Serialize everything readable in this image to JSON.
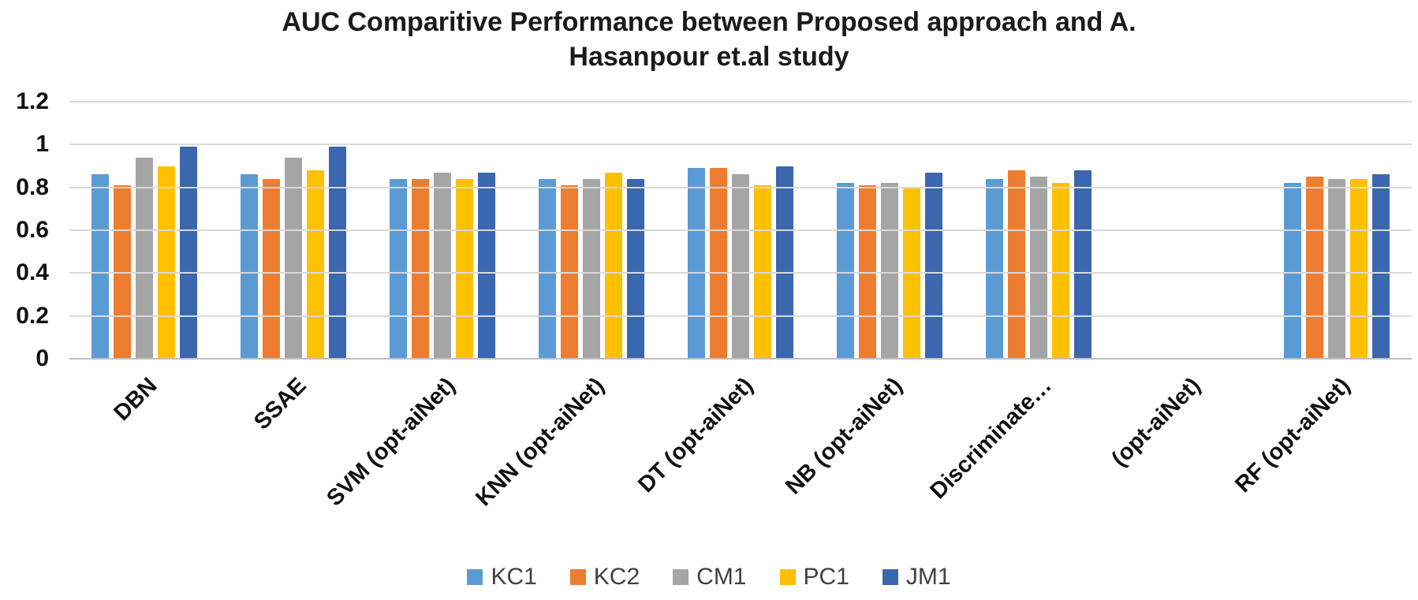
{
  "title": {
    "line1": "AUC Comparitive Performance between Proposed approach and A.",
    "line2": "Hasanpour et.al study"
  },
  "chart_data": {
    "type": "bar",
    "title": "AUC Comparitive Performance between Proposed approach and A. Hasanpour et.al study",
    "xlabel": "",
    "ylabel": "",
    "ylim": [
      0,
      1.2
    ],
    "y_ticks": [
      0,
      0.2,
      0.4,
      0.6,
      0.8,
      1,
      1.2
    ],
    "y_tick_labels": [
      "0",
      "0.2",
      "0.4",
      "0.6",
      "0.8",
      "1",
      "1.2"
    ],
    "grid": true,
    "legend_position": "bottom",
    "categories": [
      "DBN",
      "SSAE",
      "SVM (opt-aiNet)",
      "KNN (opt-aiNet)",
      "DT (opt-aiNet)",
      "NB (opt-aiNet)",
      "Discriminate…",
      "(opt-aiNet)",
      "RF (opt-aiNet)"
    ],
    "series": [
      {
        "name": "KC1",
        "color": "#5B9BD5",
        "values": [
          0.86,
          0.86,
          0.84,
          0.84,
          0.89,
          0.82,
          0.84,
          0,
          0.82
        ]
      },
      {
        "name": "KC2",
        "color": "#ED7D31",
        "values": [
          0.81,
          0.84,
          0.84,
          0.81,
          0.89,
          0.81,
          0.88,
          0,
          0.85
        ]
      },
      {
        "name": "CM1",
        "color": "#A5A5A5",
        "values": [
          0.94,
          0.94,
          0.87,
          0.84,
          0.86,
          0.82,
          0.85,
          0,
          0.84
        ]
      },
      {
        "name": "PC1",
        "color": "#FFC000",
        "values": [
          0.9,
          0.88,
          0.84,
          0.87,
          0.81,
          0.8,
          0.82,
          0,
          0.84
        ]
      },
      {
        "name": "JM1",
        "color": "#3A67AE",
        "values": [
          0.99,
          0.99,
          0.87,
          0.84,
          0.9,
          0.87,
          0.88,
          0,
          0.86
        ]
      }
    ],
    "colors": {
      "gridline": "#d9d9d9",
      "axis_line": "#bfbfbf"
    }
  }
}
